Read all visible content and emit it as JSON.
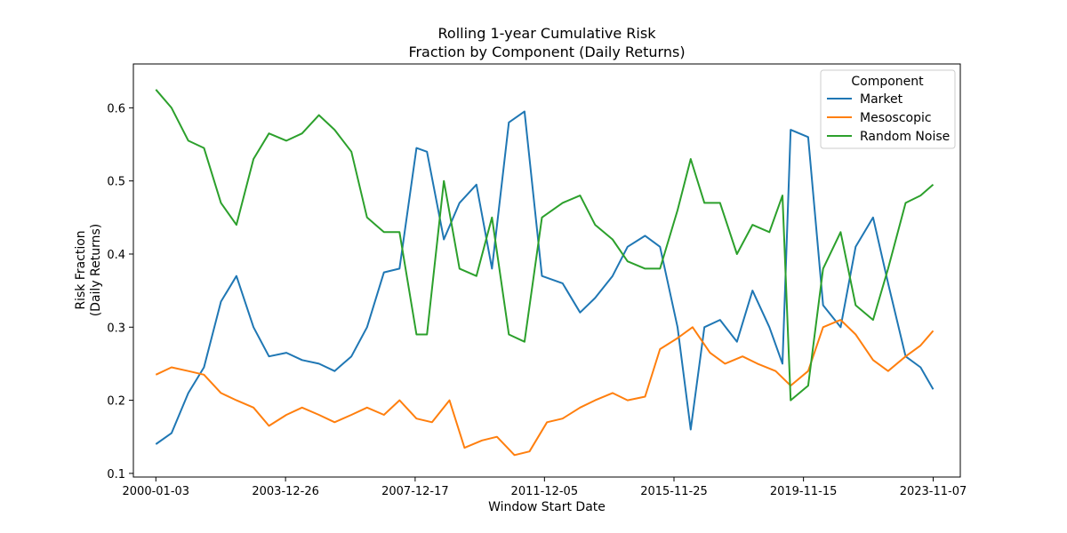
{
  "chart_data": {
    "type": "line",
    "title_line1": "Rolling 1-year Cumulative Risk",
    "title_line2": "Fraction by Component (Daily Returns)",
    "xlabel": "Window Start Date",
    "ylabel_line1": "Risk Fraction",
    "ylabel_line2": "(Daily Returns)",
    "x_ticks": [
      "2000-01-03",
      "2003-12-26",
      "2007-12-17",
      "2011-12-05",
      "2015-11-25",
      "2019-11-15",
      "2023-11-07"
    ],
    "y_ticks": [
      "0.1",
      "0.2",
      "0.3",
      "0.4",
      "0.5",
      "0.6"
    ],
    "ylim": [
      0.095,
      0.66
    ],
    "xlim": [
      "1999-04-26",
      "2024-09-06"
    ],
    "legend": {
      "title": "Component",
      "position": "upper right"
    },
    "series": [
      {
        "name": "Market",
        "color": "#1f77b4",
        "x": [
          "2000-01-03",
          "2000-06-26",
          "2001-01-01",
          "2001-06-25",
          "2002-01-01",
          "2002-06-24",
          "2003-01-01",
          "2003-06-23",
          "2004-01-05",
          "2004-06-28",
          "2005-01-03",
          "2005-06-27",
          "2006-01-02",
          "2006-06-26",
          "2007-01-01",
          "2007-06-25",
          "2008-01-01",
          "2008-04-28",
          "2008-11-03",
          "2009-04-27",
          "2009-11-02",
          "2010-04-26",
          "2010-11-01",
          "2011-04-25",
          "2011-11-07",
          "2012-06-25",
          "2013-01-07",
          "2013-06-24",
          "2014-01-06",
          "2014-06-23",
          "2015-01-05",
          "2015-06-22",
          "2016-01-04",
          "2016-05-30",
          "2016-10-31",
          "2017-04-24",
          "2017-10-30",
          "2018-04-23",
          "2018-10-29",
          "2019-03-25",
          "2019-06-24",
          "2020-01-06",
          "2020-06-22",
          "2021-01-04",
          "2021-06-21",
          "2022-01-03",
          "2022-06-20",
          "2023-01-02",
          "2023-06-19",
          "2023-11-07"
        ],
        "y": [
          0.14,
          0.155,
          0.21,
          0.245,
          0.335,
          0.37,
          0.3,
          0.26,
          0.265,
          0.255,
          0.25,
          0.24,
          0.26,
          0.3,
          0.375,
          0.38,
          0.545,
          0.54,
          0.42,
          0.47,
          0.495,
          0.38,
          0.58,
          0.595,
          0.37,
          0.36,
          0.32,
          0.34,
          0.37,
          0.41,
          0.425,
          0.41,
          0.3,
          0.16,
          0.3,
          0.31,
          0.28,
          0.35,
          0.3,
          0.25,
          0.57,
          0.56,
          0.33,
          0.3,
          0.41,
          0.45,
          0.36,
          0.26,
          0.245,
          0.215
        ]
      },
      {
        "name": "Mesoscopic",
        "color": "#ff7f0e",
        "x": [
          "2000-01-03",
          "2000-06-26",
          "2001-01-01",
          "2001-06-25",
          "2002-01-01",
          "2002-06-24",
          "2003-01-01",
          "2003-06-23",
          "2004-01-05",
          "2004-06-28",
          "2005-01-03",
          "2005-06-27",
          "2006-01-02",
          "2006-06-26",
          "2007-01-01",
          "2007-06-25",
          "2008-01-01",
          "2008-06-23",
          "2009-01-05",
          "2009-06-22",
          "2010-01-04",
          "2010-06-21",
          "2011-01-03",
          "2011-06-20",
          "2012-01-02",
          "2012-06-25",
          "2013-01-07",
          "2013-06-24",
          "2014-01-06",
          "2014-06-23",
          "2015-01-05",
          "2015-06-22",
          "2016-01-04",
          "2016-06-20",
          "2017-01-02",
          "2017-06-19",
          "2018-01-01",
          "2018-06-18",
          "2019-01-07",
          "2019-06-24",
          "2020-01-06",
          "2020-06-22",
          "2021-01-04",
          "2021-06-21",
          "2022-01-03",
          "2022-06-20",
          "2023-01-02",
          "2023-06-19",
          "2023-11-07"
        ],
        "y": [
          0.235,
          0.245,
          0.24,
          0.235,
          0.21,
          0.2,
          0.19,
          0.165,
          0.18,
          0.19,
          0.18,
          0.17,
          0.18,
          0.19,
          0.18,
          0.2,
          0.175,
          0.17,
          0.2,
          0.135,
          0.145,
          0.15,
          0.125,
          0.13,
          0.17,
          0.175,
          0.19,
          0.2,
          0.21,
          0.2,
          0.205,
          0.27,
          0.285,
          0.3,
          0.265,
          0.25,
          0.26,
          0.25,
          0.24,
          0.22,
          0.24,
          0.3,
          0.31,
          0.29,
          0.255,
          0.24,
          0.26,
          0.275,
          0.295
        ]
      },
      {
        "name": "Random Noise",
        "color": "#2ca02c",
        "x": [
          "2000-01-03",
          "2000-06-26",
          "2001-01-01",
          "2001-06-25",
          "2002-01-01",
          "2002-06-24",
          "2003-01-01",
          "2003-06-23",
          "2004-01-05",
          "2004-06-28",
          "2005-01-03",
          "2005-06-27",
          "2006-01-02",
          "2006-06-26",
          "2007-01-01",
          "2007-06-25",
          "2008-01-01",
          "2008-04-28",
          "2008-11-03",
          "2009-04-27",
          "2009-11-02",
          "2010-04-26",
          "2010-11-01",
          "2011-04-25",
          "2011-11-07",
          "2012-06-25",
          "2013-01-07",
          "2013-06-24",
          "2014-01-06",
          "2014-06-23",
          "2015-01-05",
          "2015-06-22",
          "2016-01-04",
          "2016-05-30",
          "2016-10-31",
          "2017-04-24",
          "2017-10-30",
          "2018-04-23",
          "2018-10-29",
          "2019-03-25",
          "2019-06-24",
          "2020-01-06",
          "2020-06-22",
          "2021-01-04",
          "2021-06-21",
          "2022-01-03",
          "2022-06-20",
          "2023-01-02",
          "2023-06-19",
          "2023-11-07"
        ],
        "y": [
          0.625,
          0.6,
          0.555,
          0.545,
          0.47,
          0.44,
          0.53,
          0.565,
          0.555,
          0.565,
          0.59,
          0.57,
          0.54,
          0.45,
          0.43,
          0.43,
          0.29,
          0.29,
          0.5,
          0.38,
          0.37,
          0.45,
          0.29,
          0.28,
          0.45,
          0.47,
          0.48,
          0.44,
          0.42,
          0.39,
          0.38,
          0.38,
          0.46,
          0.53,
          0.47,
          0.47,
          0.4,
          0.44,
          0.43,
          0.48,
          0.2,
          0.22,
          0.38,
          0.43,
          0.33,
          0.31,
          0.38,
          0.47,
          0.48,
          0.495
        ]
      }
    ]
  }
}
